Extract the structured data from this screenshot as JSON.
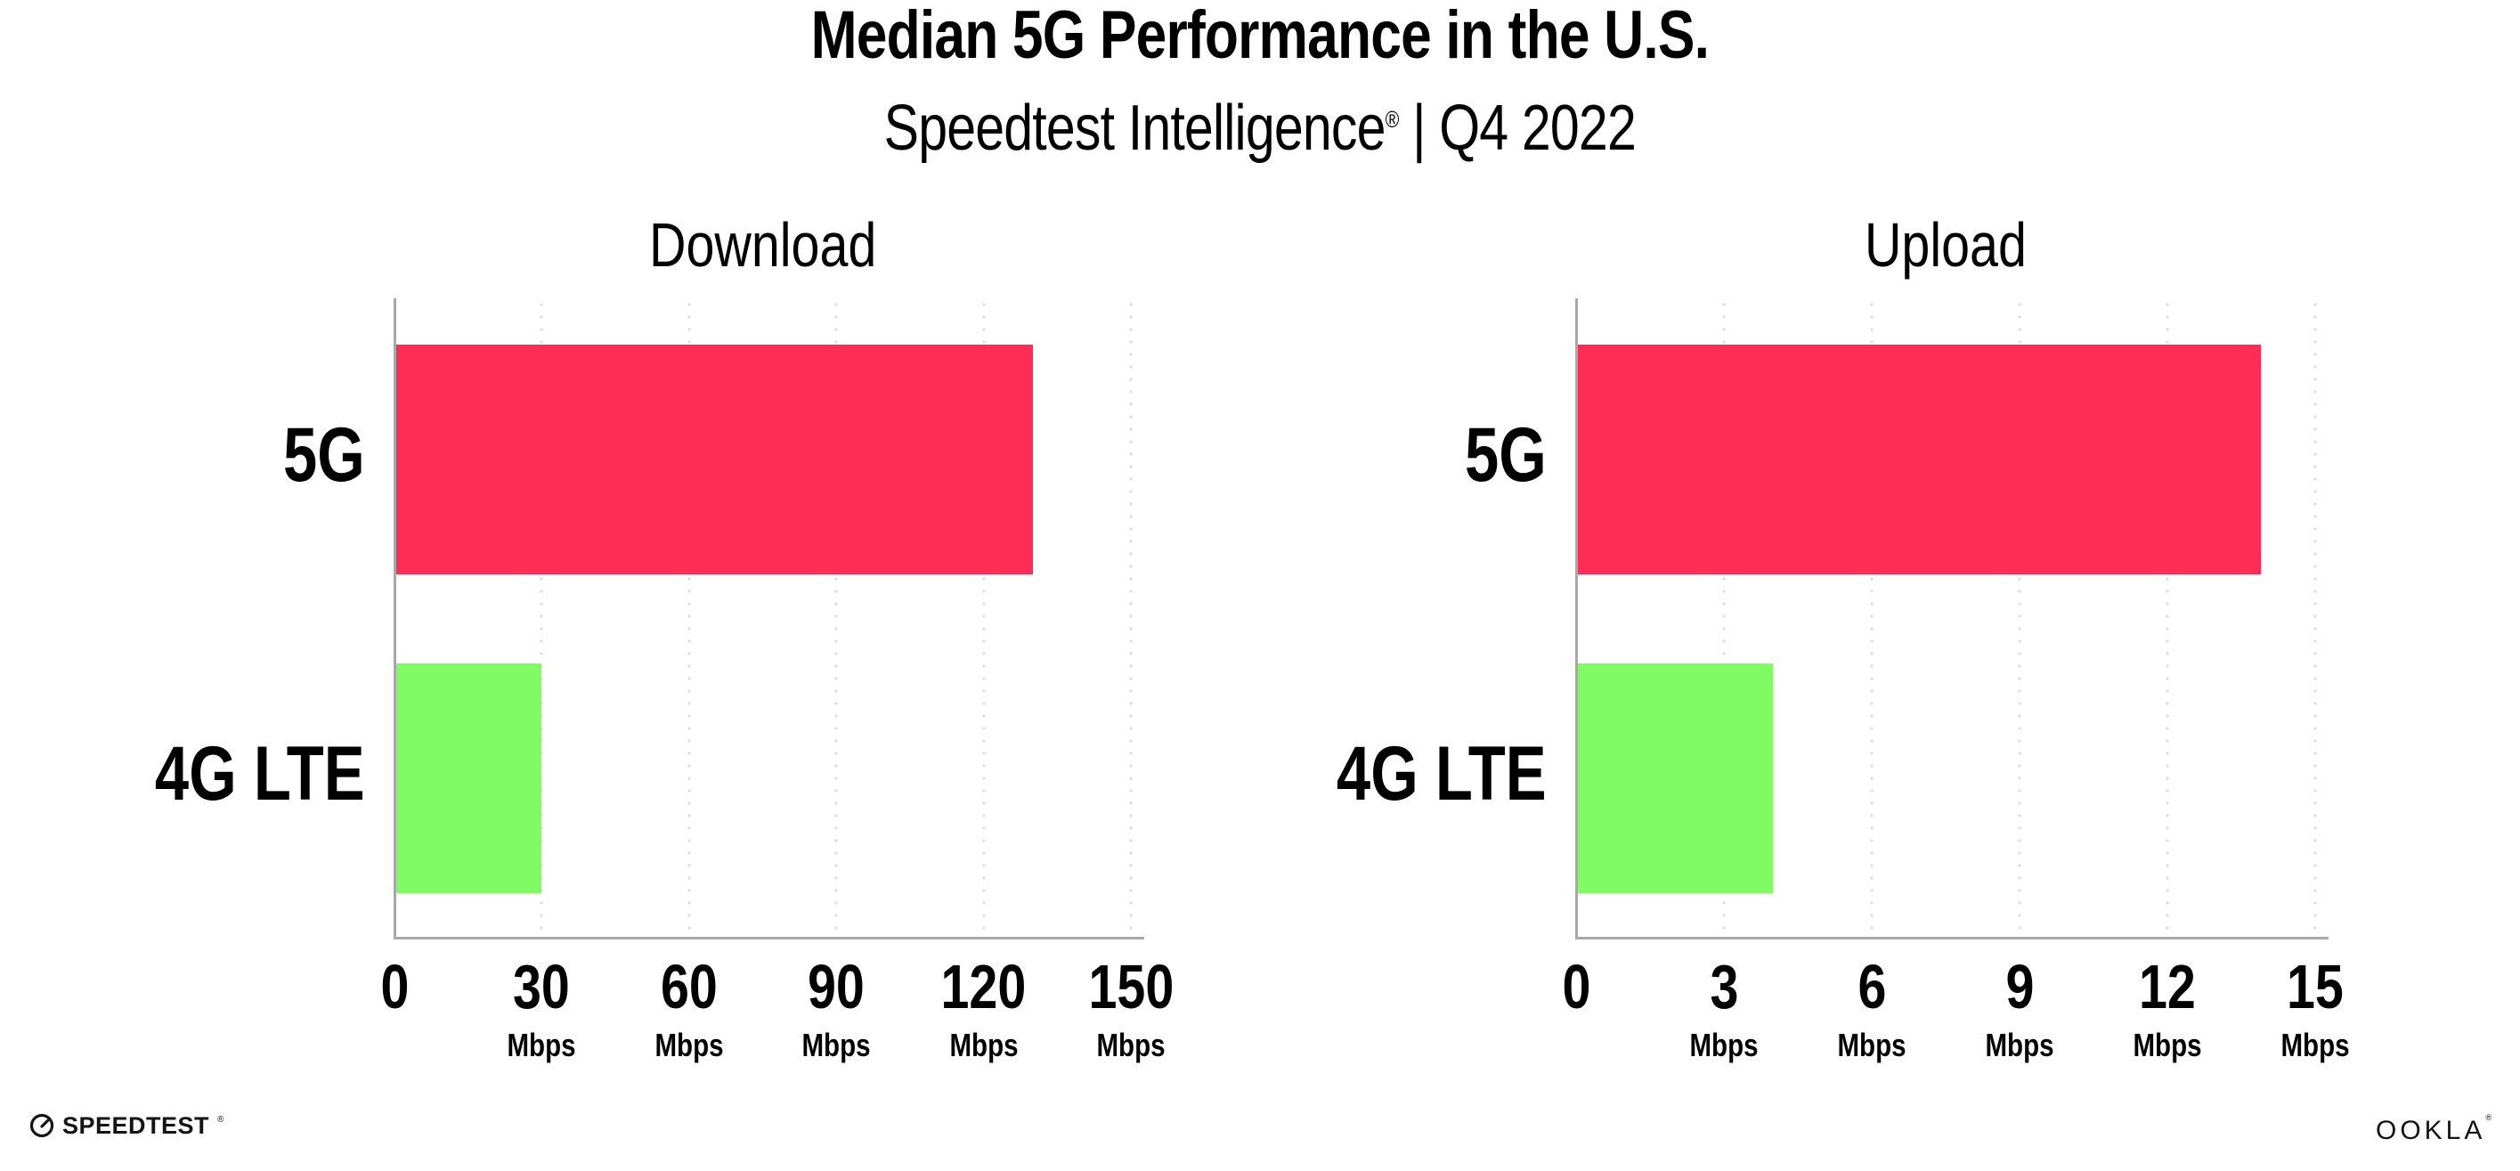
{
  "header": {
    "title": "Median 5G Performance in the U.S.",
    "subtitle_prefix": "Speedtest Intelligence",
    "subtitle_reg": "®",
    "subtitle_suffix": " | Q4 2022"
  },
  "footer": {
    "speedtest_label": "SPEEDTEST",
    "speedtest_reg": "®",
    "ookla_label": "OOKLA",
    "ookla_reg": "®"
  },
  "colors": {
    "bar_5g": "#ff2d56",
    "bar_4g": "#80fb63",
    "axis": "#a8a8a8",
    "grid_dot": "#d9dae6"
  },
  "chart_data": [
    {
      "type": "bar",
      "orientation": "horizontal",
      "title": "Download",
      "categories": [
        "5G",
        "4G LTE"
      ],
      "values": [
        130,
        30
      ],
      "unit": "Mbps",
      "xlim": [
        0,
        150
      ],
      "xticks": [
        0,
        30,
        60,
        90,
        120,
        150
      ],
      "xtick_sublabel": "Mbps",
      "grid": "dotted-vertical",
      "legend": "none",
      "bar_colors": [
        "#ff2d56",
        "#80fb63"
      ]
    },
    {
      "type": "bar",
      "orientation": "horizontal",
      "title": "Upload",
      "categories": [
        "5G",
        "4G LTE"
      ],
      "values": [
        13.9,
        4
      ],
      "unit": "Mbps",
      "xlim": [
        0,
        15
      ],
      "xticks": [
        0,
        3,
        6,
        9,
        12,
        15
      ],
      "xtick_sublabel": "Mbps",
      "grid": "dotted-vertical",
      "legend": "none",
      "bar_colors": [
        "#ff2d56",
        "#80fb63"
      ]
    }
  ]
}
